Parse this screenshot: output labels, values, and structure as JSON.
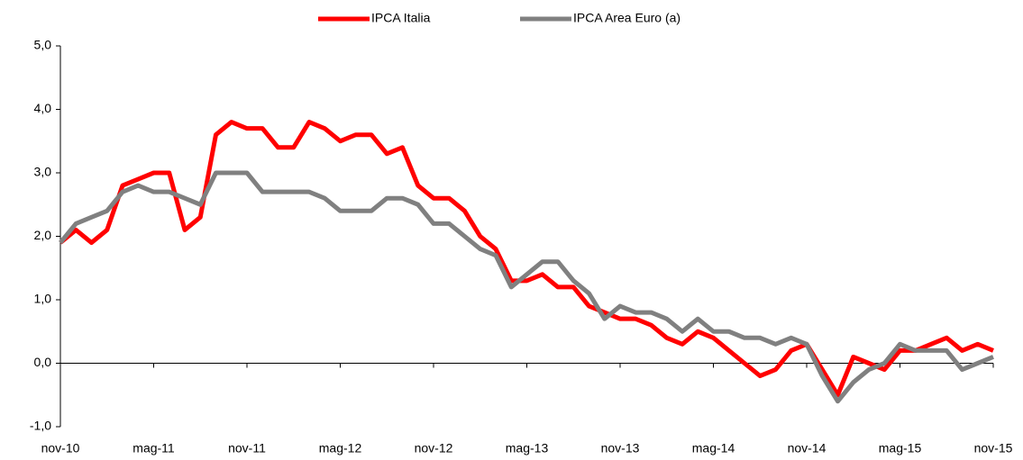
{
  "chart_data": {
    "type": "line",
    "categories": [
      "nov-10",
      null,
      null,
      null,
      null,
      null,
      "mag-11",
      null,
      null,
      null,
      null,
      null,
      "nov-11",
      null,
      null,
      null,
      null,
      null,
      "mag-12",
      null,
      null,
      null,
      null,
      null,
      "nov-12",
      null,
      null,
      null,
      null,
      null,
      "mag-13",
      null,
      null,
      null,
      null,
      null,
      "nov-13",
      null,
      null,
      null,
      null,
      null,
      "mag-14",
      null,
      null,
      null,
      null,
      null,
      "nov-14",
      null,
      null,
      null,
      null,
      null,
      "mag-15",
      null,
      null,
      null,
      null,
      null,
      "nov-15"
    ],
    "series": [
      {
        "name": "IPCA Italia",
        "color": "#ff0000",
        "values": [
          1.9,
          2.1,
          1.9,
          2.1,
          2.8,
          2.9,
          3.0,
          3.0,
          2.1,
          2.3,
          3.6,
          3.8,
          3.7,
          3.7,
          3.4,
          3.4,
          3.8,
          3.7,
          3.5,
          3.6,
          3.6,
          3.3,
          3.4,
          2.8,
          2.6,
          2.6,
          2.4,
          2.0,
          1.8,
          1.3,
          1.3,
          1.4,
          1.2,
          1.2,
          0.9,
          0.8,
          0.7,
          0.7,
          0.6,
          0.4,
          0.3,
          0.5,
          0.4,
          0.2,
          0.0,
          -0.2,
          -0.1,
          0.2,
          0.3,
          -0.1,
          -0.5,
          0.1,
          0.0,
          -0.1,
          0.2,
          0.2,
          0.3,
          0.4,
          0.2,
          0.3,
          0.2
        ]
      },
      {
        "name": "IPCA Area Euro (a)",
        "color": "#808080",
        "values": [
          1.9,
          2.2,
          2.3,
          2.4,
          2.7,
          2.8,
          2.7,
          2.7,
          2.6,
          2.5,
          3.0,
          3.0,
          3.0,
          2.7,
          2.7,
          2.7,
          2.7,
          2.6,
          2.4,
          2.4,
          2.4,
          2.6,
          2.6,
          2.5,
          2.2,
          2.2,
          2.0,
          1.8,
          1.7,
          1.2,
          1.4,
          1.6,
          1.6,
          1.3,
          1.1,
          0.7,
          0.9,
          0.8,
          0.8,
          0.7,
          0.5,
          0.7,
          0.5,
          0.5,
          0.4,
          0.4,
          0.3,
          0.4,
          0.3,
          -0.2,
          -0.6,
          -0.3,
          -0.1,
          0.0,
          0.3,
          0.2,
          0.2,
          0.2,
          -0.1,
          0.0,
          0.1
        ]
      }
    ],
    "ylim": [
      -1,
      5
    ],
    "yticks": [
      {
        "value": -1,
        "label": "-1,0"
      },
      {
        "value": 0,
        "label": "0,0"
      },
      {
        "value": 1,
        "label": "1,0"
      },
      {
        "value": 2,
        "label": "2,0"
      },
      {
        "value": 3,
        "label": "3,0"
      },
      {
        "value": 4,
        "label": "4,0"
      },
      {
        "value": 5,
        "label": "5,0"
      }
    ],
    "grid": false,
    "legend": "top"
  }
}
